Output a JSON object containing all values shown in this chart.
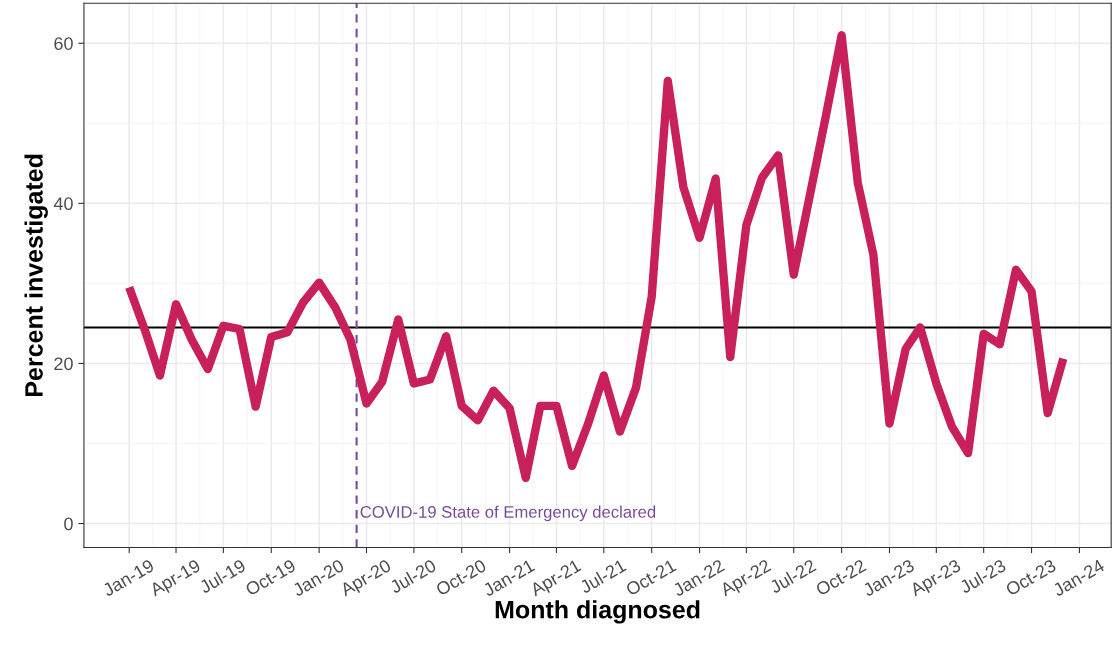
{
  "chart_data": {
    "type": "line",
    "xlabel": "Month diagnosed",
    "ylabel": "Percent investigated",
    "x": [
      "2019-01",
      "2019-02",
      "2019-03",
      "2019-04",
      "2019-05",
      "2019-06",
      "2019-07",
      "2019-08",
      "2019-09",
      "2019-10",
      "2019-11",
      "2019-12",
      "2020-01",
      "2020-02",
      "2020-03",
      "2020-04",
      "2020-05",
      "2020-06",
      "2020-07",
      "2020-08",
      "2020-09",
      "2020-10",
      "2020-11",
      "2020-12",
      "2021-01",
      "2021-02",
      "2021-03",
      "2021-04",
      "2021-05",
      "2021-06",
      "2021-07",
      "2021-08",
      "2021-09",
      "2021-10",
      "2021-11",
      "2021-12",
      "2022-01",
      "2022-02",
      "2022-03",
      "2022-04",
      "2022-05",
      "2022-06",
      "2022-07",
      "2022-08",
      "2022-09",
      "2022-10",
      "2022-11",
      "2022-12",
      "2023-01",
      "2023-02",
      "2023-03",
      "2023-04",
      "2023-05",
      "2023-06",
      "2023-07",
      "2023-08",
      "2023-09",
      "2023-10",
      "2023-11",
      "2023-12"
    ],
    "series": [
      {
        "color": "#c8205a",
        "values": [
          29.5,
          24,
          18.5,
          27.4,
          23,
          19.3,
          24.7,
          24.3,
          14.6,
          23.3,
          23.9,
          27.6,
          30.1,
          27,
          23,
          15,
          17.7,
          25.5,
          17.5,
          18,
          23.4,
          14.7,
          12.9,
          16.6,
          14.4,
          5.7,
          14.7,
          14.7,
          7.2,
          12.5,
          18.5,
          11.5,
          17,
          28.3,
          55.3,
          42,
          35.7,
          43.1,
          20.8,
          37.3,
          43.2,
          46,
          31.1,
          41,
          51,
          61,
          42.6,
          33.6,
          12.5,
          21.8,
          24.5,
          17.5,
          12.1,
          8.8,
          23.7,
          22.4,
          31.7,
          29,
          13.8,
          20.6
        ]
      }
    ],
    "xlim": [
      "2018-10-06",
      "2024-03-02"
    ],
    "xticks": [
      {
        "value": "2019-01",
        "label": "Jan-19"
      },
      {
        "value": "2019-04",
        "label": "Apr-19"
      },
      {
        "value": "2019-07",
        "label": "Jul-19"
      },
      {
        "value": "2019-10",
        "label": "Oct-19"
      },
      {
        "value": "2020-01",
        "label": "Jan-20"
      },
      {
        "value": "2020-04",
        "label": "Apr-20"
      },
      {
        "value": "2020-07",
        "label": "Jul-20"
      },
      {
        "value": "2020-10",
        "label": "Oct-20"
      },
      {
        "value": "2021-01",
        "label": "Jan-21"
      },
      {
        "value": "2021-04",
        "label": "Apr-21"
      },
      {
        "value": "2021-07",
        "label": "Jul-21"
      },
      {
        "value": "2021-10",
        "label": "Oct-21"
      },
      {
        "value": "2022-01",
        "label": "Jan-22"
      },
      {
        "value": "2022-04",
        "label": "Apr-22"
      },
      {
        "value": "2022-07",
        "label": "Jul-22"
      },
      {
        "value": "2022-10",
        "label": "Oct-22"
      },
      {
        "value": "2023-01",
        "label": "Jan-23"
      },
      {
        "value": "2023-04",
        "label": "Apr-23"
      },
      {
        "value": "2023-07",
        "label": "Jul-23"
      },
      {
        "value": "2023-10",
        "label": "Oct-23"
      },
      {
        "value": "2024-01",
        "label": "Jan-24"
      }
    ],
    "ylim": [
      -3,
      65
    ],
    "yticks": [
      0,
      20,
      40,
      60
    ],
    "ref_lines": [
      {
        "axis": "y",
        "value": 24.5,
        "color": "#000000",
        "line_style": "solid"
      },
      {
        "axis": "x",
        "value": "2020-03-13",
        "label": "COVID-19 State of Emergency declared",
        "color": "#7a4a9a",
        "line_style": "dashed"
      }
    ],
    "grid": true,
    "marker": "none",
    "line_style": "solid"
  }
}
